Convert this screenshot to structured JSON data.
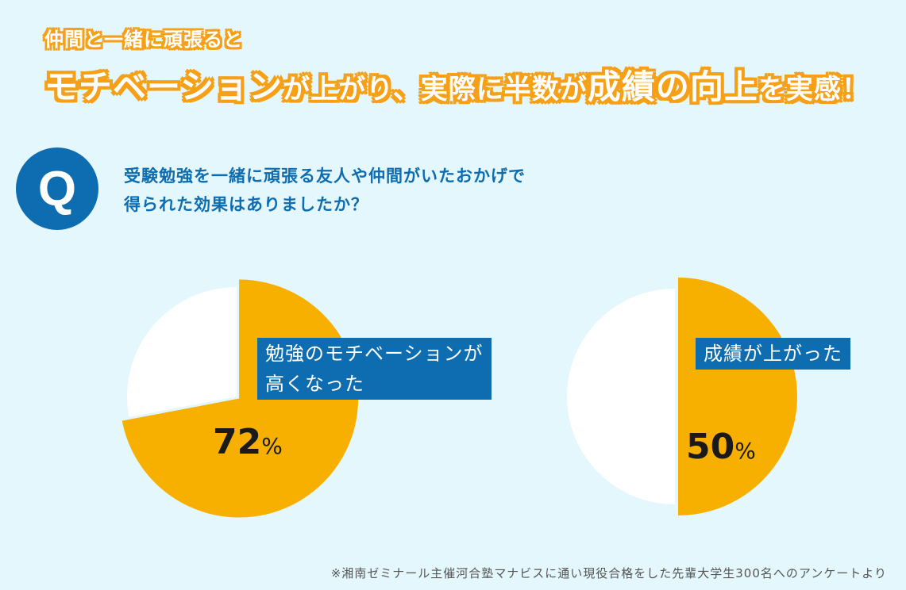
{
  "header": {
    "line1": "仲間と一緒に頑張ると",
    "line2_parts": [
      {
        "text": "モチベーション",
        "emph": true
      },
      {
        "text": "が上がり、実際に半数が",
        "emph": false
      },
      {
        "text": "成績の向上",
        "emph": true
      },
      {
        "text": "を実感！",
        "emph": false
      }
    ]
  },
  "question": {
    "badge": "Q",
    "line1": "受験勉強を一緒に頑張る友人や仲間がいたおかげで",
    "line2": "得られた効果はありましたか？"
  },
  "colors": {
    "background": "#e3f7fc",
    "accent": "#f5a016",
    "pie_fill": "#f8b000",
    "pie_rest": "#ffffff",
    "label_bg": "#0e6db0"
  },
  "chart_data": [
    {
      "type": "pie",
      "label_lines": [
        "勉強のモチベーションが",
        "高くなった"
      ],
      "value": 72,
      "value_text": "72",
      "unit": "%"
    },
    {
      "type": "pie",
      "label_lines": [
        "成績が上がった"
      ],
      "value": 50,
      "value_text": "50",
      "unit": "%"
    }
  ],
  "footnote": "※湘南ゼミナール主催河合塾マナビスに通い現役合格をした先輩大学生300名へのアンケートより"
}
